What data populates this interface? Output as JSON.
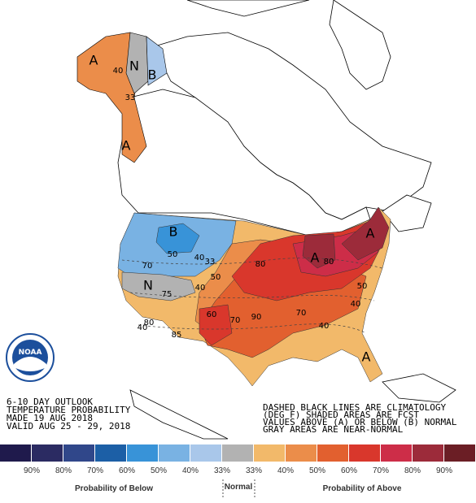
{
  "header": {
    "lines": [
      "6-10 DAY OUTLOOK",
      "TEMPERATURE PROBABILITY",
      "MADE  19 AUG 2018",
      "VALID  AUG 25 - 29, 2018"
    ]
  },
  "notes": [
    "DASHED BLACK LINES ARE CLIMATOLOGY",
    "(DEG F) SHADED AREAS ARE FCST",
    "VALUES ABOVE (A) OR BELOW (B) NORMAL",
    "GRAY AREAS ARE NEAR-NORMAL"
  ],
  "logo": "NOAA",
  "map_labels": [
    "A",
    "N",
    "B",
    "40",
    "33",
    "A",
    "B",
    "50",
    "40",
    "33",
    "70",
    "N",
    "50",
    "40",
    "75",
    "60",
    "70",
    "80",
    "85",
    "40",
    "80",
    "90",
    "A",
    "80",
    "A",
    "50",
    "70",
    "40",
    "40",
    "A"
  ],
  "legend": {
    "colors": [
      "#1f1a4c",
      "#2b2b62",
      "#30478a",
      "#1c5fa6",
      "#3893d8",
      "#79b2e3",
      "#a9c7ea",
      "#b2b2b2",
      "#f2b96a",
      "#eb8d4a",
      "#e2602f",
      "#d9372c",
      "#cd2d48",
      "#9c2b3a",
      "#6b1e25"
    ],
    "labels": [
      "90%",
      "80%",
      "70%",
      "60%",
      "50%",
      "40%",
      "33%",
      "33%",
      "40%",
      "50%",
      "60%",
      "70%",
      "80%",
      "90%"
    ],
    "below_title": "Probability of Below",
    "normal_title": "Normal",
    "above_title": "Probability of Above"
  }
}
